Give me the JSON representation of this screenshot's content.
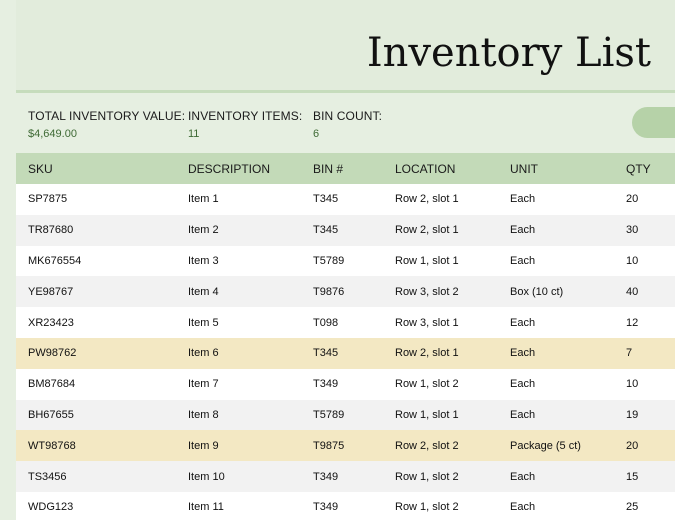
{
  "sheet": {
    "title": "Inventory List"
  },
  "summary": {
    "total_value_label": "TOTAL INVENTORY VALUE:",
    "total_value": "$4,649.00",
    "items_label": "INVENTORY ITEMS:",
    "items_value": "11",
    "bin_count_label": "BIN COUNT:",
    "bin_count_value": "6"
  },
  "table": {
    "columns": [
      "SKU",
      "DESCRIPTION",
      "BIN #",
      "LOCATION",
      "UNIT",
      "QTY"
    ],
    "rows": [
      {
        "sku": "SP7875",
        "description": "Item 1",
        "bin": "T345",
        "location": "Row 2, slot 1",
        "unit": "Each",
        "qty": "20",
        "highlight": false
      },
      {
        "sku": "TR87680",
        "description": "Item 2",
        "bin": "T345",
        "location": "Row 2, slot 1",
        "unit": "Each",
        "qty": "30",
        "highlight": false
      },
      {
        "sku": "MK676554",
        "description": "Item 3",
        "bin": "T5789",
        "location": "Row 1, slot 1",
        "unit": "Each",
        "qty": "10",
        "highlight": false
      },
      {
        "sku": "YE98767",
        "description": "Item 4",
        "bin": "T9876",
        "location": "Row 3, slot 2",
        "unit": "Box (10 ct)",
        "qty": "40",
        "highlight": false
      },
      {
        "sku": "XR23423",
        "description": "Item 5",
        "bin": "T098",
        "location": "Row 3, slot 1",
        "unit": "Each",
        "qty": "12",
        "highlight": false
      },
      {
        "sku": "PW98762",
        "description": "Item 6",
        "bin": "T345",
        "location": "Row 2, slot 1",
        "unit": "Each",
        "qty": "7",
        "highlight": true
      },
      {
        "sku": "BM87684",
        "description": "Item 7",
        "bin": "T349",
        "location": "Row 1, slot 2",
        "unit": "Each",
        "qty": "10",
        "highlight": false
      },
      {
        "sku": "BH67655",
        "description": "Item 8",
        "bin": "T5789",
        "location": "Row 1, slot 1",
        "unit": "Each",
        "qty": "19",
        "highlight": false
      },
      {
        "sku": "WT98768",
        "description": "Item 9",
        "bin": "T9875",
        "location": "Row 2, slot 2",
        "unit": "Package (5 ct)",
        "qty": "20",
        "highlight": true
      },
      {
        "sku": "TS3456",
        "description": "Item 10",
        "bin": "T349",
        "location": "Row 1, slot 2",
        "unit": "Each",
        "qty": "15",
        "highlight": false
      },
      {
        "sku": "WDG123",
        "description": "Item 11",
        "bin": "T349",
        "location": "Row 1, slot 2",
        "unit": "Each",
        "qty": "25",
        "highlight": false
      }
    ]
  },
  "colors": {
    "header_band": "#c3dab8",
    "title_band": "#e2ecdc",
    "summary_value": "#3f6a35",
    "highlight_row": "#f3e8c3",
    "alt_row": "#f2f2f2"
  }
}
